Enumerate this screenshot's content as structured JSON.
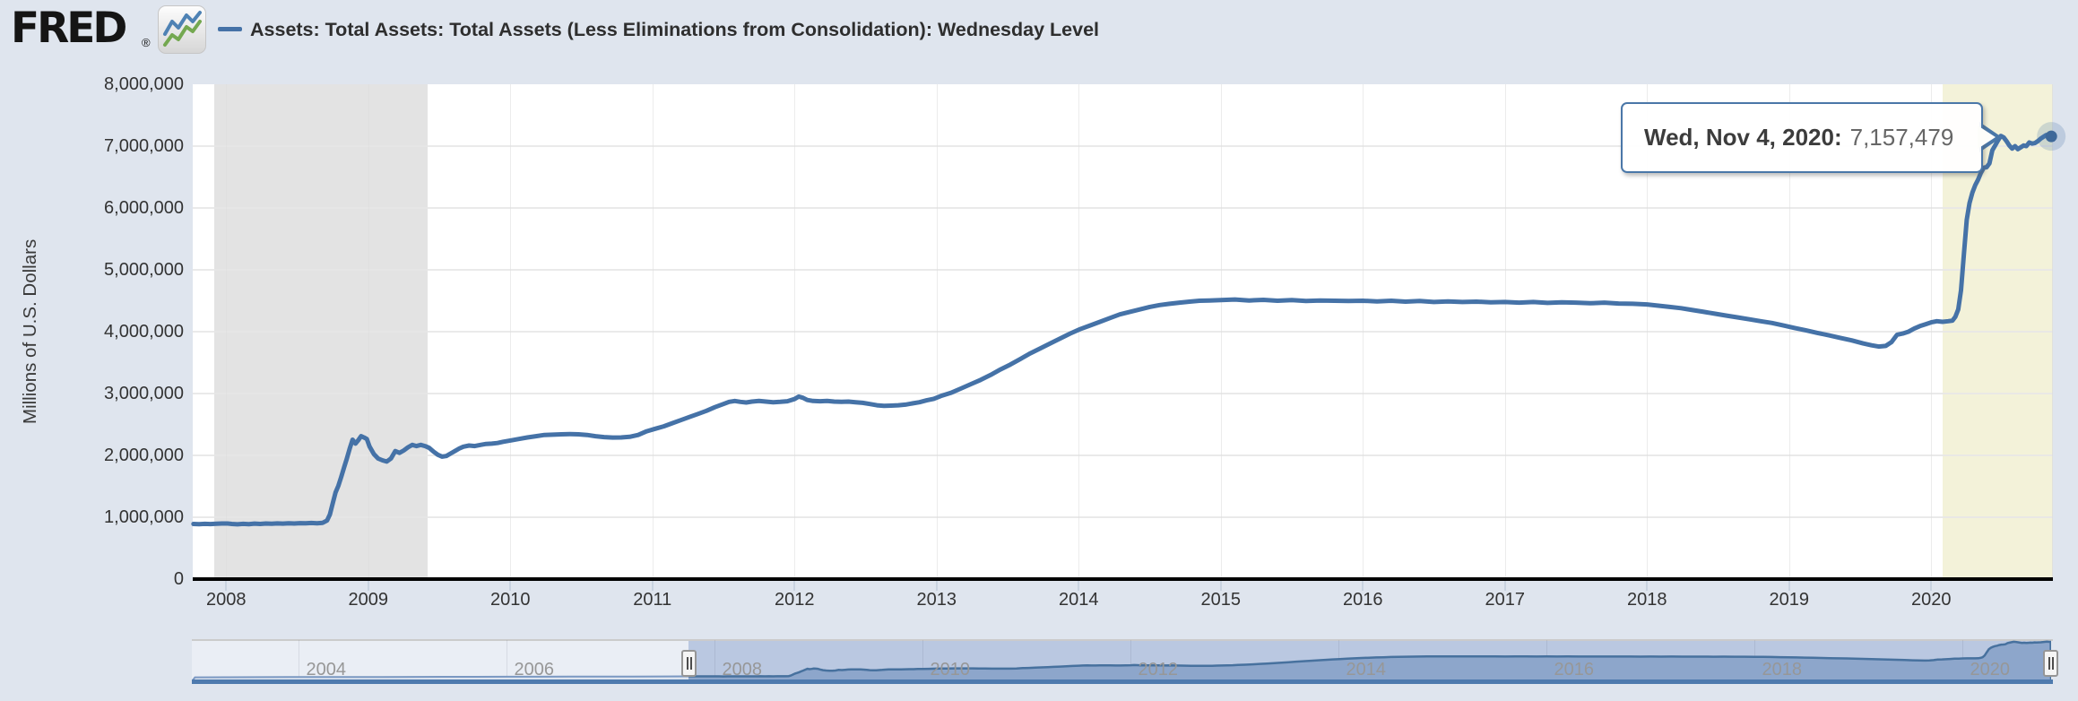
{
  "header": {
    "logo_text": "FRED",
    "logo_registered": "®",
    "series_title": "Assets: Total Assets: Total Assets (Less Eliminations from Consolidation): Wednesday Level"
  },
  "tooltip": {
    "date_label": "Wed, Nov 4, 2020:",
    "value": "7,157,479"
  },
  "y_axis": {
    "title": "Millions of U.S. Dollars",
    "ticks": [
      "8,000,000",
      "7,000,000",
      "6,000,000",
      "5,000,000",
      "4,000,000",
      "3,000,000",
      "2,000,000",
      "1,000,000",
      "0"
    ]
  },
  "x_axis": {
    "ticks": [
      "2008",
      "2009",
      "2010",
      "2011",
      "2012",
      "2013",
      "2014",
      "2015",
      "2016",
      "2017",
      "2018",
      "2019",
      "2020"
    ]
  },
  "navigator": {
    "labels": [
      "2004",
      "2006",
      "2008",
      "2010",
      "2012",
      "2014",
      "2016",
      "2018",
      "2020"
    ]
  },
  "colors": {
    "page_bg": "#dfe5ee",
    "line": "#4572a7",
    "recession_band": "#e3e3e3",
    "ongoing_recession_band": "#f3f2d9",
    "tooltip_border": "#4a77a8",
    "marker": "#3e6899",
    "halo": "rgba(69,114,167,0.22)",
    "nav_selected_fill": "#8da6cb",
    "nav_mask": "#bac8e1"
  },
  "chart_data": {
    "type": "line",
    "title": "Assets: Total Assets: Total Assets (Less Eliminations from Consolidation): Wednesday Level",
    "xlabel": "",
    "ylabel": "Millions of U.S. Dollars",
    "ylim": [
      0,
      8000000
    ],
    "x_range_years": [
      2007.77,
      2020.86
    ],
    "grid": true,
    "legend_position": "top-left-header",
    "recession_bands_years": [
      [
        2007.917,
        2009.417
      ],
      [
        2020.083,
        2020.86
      ]
    ],
    "highlight_point": {
      "date": "Wed, Nov 4, 2020",
      "year": 2020.845,
      "value": 7157479
    },
    "series": [
      {
        "name": "Assets: Total Assets: Total Assets (Less Eliminations from Consolidation): Wednesday Level",
        "points": [
          [
            2007.77,
            891000
          ],
          [
            2007.81,
            889000
          ],
          [
            2007.85,
            893000
          ],
          [
            2007.89,
            890000
          ],
          [
            2007.93,
            894000
          ],
          [
            2007.97,
            898000
          ],
          [
            2008.01,
            899000
          ],
          [
            2008.04,
            892000
          ],
          [
            2008.08,
            886000
          ],
          [
            2008.12,
            893000
          ],
          [
            2008.16,
            889000
          ],
          [
            2008.2,
            897000
          ],
          [
            2008.24,
            892000
          ],
          [
            2008.28,
            899000
          ],
          [
            2008.32,
            895000
          ],
          [
            2008.36,
            900000
          ],
          [
            2008.4,
            897000
          ],
          [
            2008.44,
            903000
          ],
          [
            2008.48,
            899000
          ],
          [
            2008.52,
            905000
          ],
          [
            2008.56,
            901000
          ],
          [
            2008.6,
            907000
          ],
          [
            2008.64,
            903000
          ],
          [
            2008.68,
            910000
          ],
          [
            2008.71,
            946000
          ],
          [
            2008.73,
            1045000
          ],
          [
            2008.75,
            1220000
          ],
          [
            2008.77,
            1400000
          ],
          [
            2008.79,
            1510000
          ],
          [
            2008.81,
            1650000
          ],
          [
            2008.83,
            1804000
          ],
          [
            2008.85,
            1953000
          ],
          [
            2008.87,
            2110000
          ],
          [
            2008.89,
            2254000
          ],
          [
            2008.91,
            2190000
          ],
          [
            2008.93,
            2247000
          ],
          [
            2008.95,
            2310000
          ],
          [
            2008.97,
            2290000
          ],
          [
            2008.99,
            2265000
          ],
          [
            2009.01,
            2140000
          ],
          [
            2009.04,
            2020000
          ],
          [
            2009.07,
            1950000
          ],
          [
            2009.1,
            1920000
          ],
          [
            2009.13,
            1900000
          ],
          [
            2009.16,
            1950000
          ],
          [
            2009.19,
            2070000
          ],
          [
            2009.22,
            2040000
          ],
          [
            2009.25,
            2080000
          ],
          [
            2009.28,
            2130000
          ],
          [
            2009.31,
            2170000
          ],
          [
            2009.34,
            2150000
          ],
          [
            2009.37,
            2170000
          ],
          [
            2009.4,
            2150000
          ],
          [
            2009.43,
            2120000
          ],
          [
            2009.46,
            2060000
          ],
          [
            2009.49,
            2010000
          ],
          [
            2009.52,
            1980000
          ],
          [
            2009.55,
            1990000
          ],
          [
            2009.58,
            2030000
          ],
          [
            2009.61,
            2070000
          ],
          [
            2009.64,
            2110000
          ],
          [
            2009.67,
            2140000
          ],
          [
            2009.71,
            2160000
          ],
          [
            2009.75,
            2150000
          ],
          [
            2009.79,
            2170000
          ],
          [
            2009.83,
            2185000
          ],
          [
            2009.87,
            2190000
          ],
          [
            2009.91,
            2200000
          ],
          [
            2009.95,
            2220000
          ],
          [
            2010.0,
            2240000
          ],
          [
            2010.06,
            2265000
          ],
          [
            2010.12,
            2290000
          ],
          [
            2010.18,
            2310000
          ],
          [
            2010.24,
            2330000
          ],
          [
            2010.3,
            2335000
          ],
          [
            2010.36,
            2340000
          ],
          [
            2010.42,
            2345000
          ],
          [
            2010.48,
            2340000
          ],
          [
            2010.54,
            2330000
          ],
          [
            2010.6,
            2310000
          ],
          [
            2010.66,
            2295000
          ],
          [
            2010.72,
            2288000
          ],
          [
            2010.78,
            2290000
          ],
          [
            2010.84,
            2300000
          ],
          [
            2010.9,
            2330000
          ],
          [
            2010.96,
            2390000
          ],
          [
            2011.02,
            2430000
          ],
          [
            2011.08,
            2470000
          ],
          [
            2011.14,
            2520000
          ],
          [
            2011.2,
            2570000
          ],
          [
            2011.26,
            2620000
          ],
          [
            2011.32,
            2670000
          ],
          [
            2011.38,
            2720000
          ],
          [
            2011.44,
            2780000
          ],
          [
            2011.5,
            2830000
          ],
          [
            2011.54,
            2865000
          ],
          [
            2011.58,
            2880000
          ],
          [
            2011.62,
            2865000
          ],
          [
            2011.66,
            2855000
          ],
          [
            2011.7,
            2870000
          ],
          [
            2011.75,
            2880000
          ],
          [
            2011.8,
            2870000
          ],
          [
            2011.85,
            2860000
          ],
          [
            2011.9,
            2865000
          ],
          [
            2011.95,
            2875000
          ],
          [
            2012.0,
            2910000
          ],
          [
            2012.03,
            2950000
          ],
          [
            2012.06,
            2930000
          ],
          [
            2012.09,
            2895000
          ],
          [
            2012.13,
            2880000
          ],
          [
            2012.18,
            2875000
          ],
          [
            2012.23,
            2880000
          ],
          [
            2012.28,
            2870000
          ],
          [
            2012.33,
            2865000
          ],
          [
            2012.38,
            2870000
          ],
          [
            2012.43,
            2860000
          ],
          [
            2012.48,
            2850000
          ],
          [
            2012.53,
            2830000
          ],
          [
            2012.58,
            2810000
          ],
          [
            2012.63,
            2800000
          ],
          [
            2012.68,
            2805000
          ],
          [
            2012.73,
            2810000
          ],
          [
            2012.78,
            2820000
          ],
          [
            2012.83,
            2840000
          ],
          [
            2012.88,
            2860000
          ],
          [
            2012.93,
            2890000
          ],
          [
            2012.98,
            2915000
          ],
          [
            2013.03,
            2960000
          ],
          [
            2013.1,
            3010000
          ],
          [
            2013.17,
            3080000
          ],
          [
            2013.24,
            3150000
          ],
          [
            2013.31,
            3220000
          ],
          [
            2013.38,
            3300000
          ],
          [
            2013.45,
            3390000
          ],
          [
            2013.52,
            3470000
          ],
          [
            2013.59,
            3560000
          ],
          [
            2013.66,
            3650000
          ],
          [
            2013.73,
            3730000
          ],
          [
            2013.8,
            3810000
          ],
          [
            2013.87,
            3890000
          ],
          [
            2013.94,
            3970000
          ],
          [
            2014.01,
            4040000
          ],
          [
            2014.08,
            4100000
          ],
          [
            2014.15,
            4160000
          ],
          [
            2014.22,
            4220000
          ],
          [
            2014.29,
            4280000
          ],
          [
            2014.36,
            4320000
          ],
          [
            2014.43,
            4360000
          ],
          [
            2014.5,
            4400000
          ],
          [
            2014.57,
            4430000
          ],
          [
            2014.64,
            4450000
          ],
          [
            2014.71,
            4470000
          ],
          [
            2014.78,
            4485000
          ],
          [
            2014.85,
            4500000
          ],
          [
            2014.92,
            4505000
          ],
          [
            2015.0,
            4510000
          ],
          [
            2015.1,
            4520000
          ],
          [
            2015.2,
            4505000
          ],
          [
            2015.3,
            4515000
          ],
          [
            2015.4,
            4500000
          ],
          [
            2015.5,
            4510000
          ],
          [
            2015.6,
            4495000
          ],
          [
            2015.7,
            4505000
          ],
          [
            2015.8,
            4500000
          ],
          [
            2015.9,
            4495000
          ],
          [
            2016.0,
            4500000
          ],
          [
            2016.1,
            4490000
          ],
          [
            2016.2,
            4500000
          ],
          [
            2016.3,
            4485000
          ],
          [
            2016.4,
            4495000
          ],
          [
            2016.5,
            4480000
          ],
          [
            2016.6,
            4490000
          ],
          [
            2016.7,
            4480000
          ],
          [
            2016.8,
            4485000
          ],
          [
            2016.9,
            4475000
          ],
          [
            2017.0,
            4480000
          ],
          [
            2017.1,
            4470000
          ],
          [
            2017.2,
            4480000
          ],
          [
            2017.3,
            4465000
          ],
          [
            2017.4,
            4475000
          ],
          [
            2017.5,
            4470000
          ],
          [
            2017.6,
            4460000
          ],
          [
            2017.7,
            4470000
          ],
          [
            2017.8,
            4455000
          ],
          [
            2017.9,
            4450000
          ],
          [
            2018.0,
            4440000
          ],
          [
            2018.08,
            4420000
          ],
          [
            2018.16,
            4400000
          ],
          [
            2018.24,
            4380000
          ],
          [
            2018.32,
            4350000
          ],
          [
            2018.4,
            4320000
          ],
          [
            2018.48,
            4290000
          ],
          [
            2018.56,
            4260000
          ],
          [
            2018.64,
            4230000
          ],
          [
            2018.72,
            4200000
          ],
          [
            2018.8,
            4170000
          ],
          [
            2018.88,
            4140000
          ],
          [
            2018.96,
            4100000
          ],
          [
            2019.04,
            4060000
          ],
          [
            2019.12,
            4020000
          ],
          [
            2019.2,
            3980000
          ],
          [
            2019.28,
            3940000
          ],
          [
            2019.36,
            3900000
          ],
          [
            2019.44,
            3860000
          ],
          [
            2019.52,
            3810000
          ],
          [
            2019.58,
            3780000
          ],
          [
            2019.63,
            3760000
          ],
          [
            2019.68,
            3770000
          ],
          [
            2019.72,
            3830000
          ],
          [
            2019.76,
            3950000
          ],
          [
            2019.8,
            3970000
          ],
          [
            2019.84,
            4000000
          ],
          [
            2019.88,
            4050000
          ],
          [
            2019.92,
            4090000
          ],
          [
            2019.96,
            4120000
          ],
          [
            2020.0,
            4150000
          ],
          [
            2020.04,
            4170000
          ],
          [
            2020.08,
            4160000
          ],
          [
            2020.12,
            4170000
          ],
          [
            2020.15,
            4180000
          ],
          [
            2020.17,
            4240000
          ],
          [
            2020.19,
            4360000
          ],
          [
            2020.21,
            4670000
          ],
          [
            2020.23,
            5250000
          ],
          [
            2020.25,
            5810000
          ],
          [
            2020.27,
            6080000
          ],
          [
            2020.29,
            6250000
          ],
          [
            2020.31,
            6370000
          ],
          [
            2020.33,
            6460000
          ],
          [
            2020.35,
            6570000
          ],
          [
            2020.37,
            6650000
          ],
          [
            2020.39,
            6660000
          ],
          [
            2020.41,
            6720000
          ],
          [
            2020.43,
            6930000
          ],
          [
            2020.45,
            7010000
          ],
          [
            2020.47,
            7090000
          ],
          [
            2020.49,
            7165000
          ],
          [
            2020.51,
            7140000
          ],
          [
            2020.53,
            7080000
          ],
          [
            2020.55,
            7010000
          ],
          [
            2020.57,
            6960000
          ],
          [
            2020.59,
            7000000
          ],
          [
            2020.61,
            6950000
          ],
          [
            2020.63,
            6980000
          ],
          [
            2020.65,
            7010000
          ],
          [
            2020.67,
            7000000
          ],
          [
            2020.69,
            7060000
          ],
          [
            2020.71,
            7040000
          ],
          [
            2020.73,
            7050000
          ],
          [
            2020.75,
            7080000
          ],
          [
            2020.77,
            7120000
          ],
          [
            2020.79,
            7150000
          ],
          [
            2020.81,
            7180000
          ],
          [
            2020.83,
            7160000
          ],
          [
            2020.845,
            7157479
          ]
        ]
      }
    ],
    "navigator_prefix_points": [
      [
        2003.0,
        720000
      ],
      [
        2003.3,
        735000
      ],
      [
        2003.6,
        748000
      ],
      [
        2003.9,
        760000
      ],
      [
        2004.2,
        770000
      ],
      [
        2004.5,
        778000
      ],
      [
        2004.8,
        785000
      ],
      [
        2005.1,
        795000
      ],
      [
        2005.4,
        805000
      ],
      [
        2005.7,
        815000
      ],
      [
        2006.0,
        825000
      ],
      [
        2006.3,
        835000
      ],
      [
        2006.6,
        845000
      ],
      [
        2006.9,
        855000
      ],
      [
        2007.2,
        865000
      ],
      [
        2007.5,
        875000
      ]
    ]
  }
}
